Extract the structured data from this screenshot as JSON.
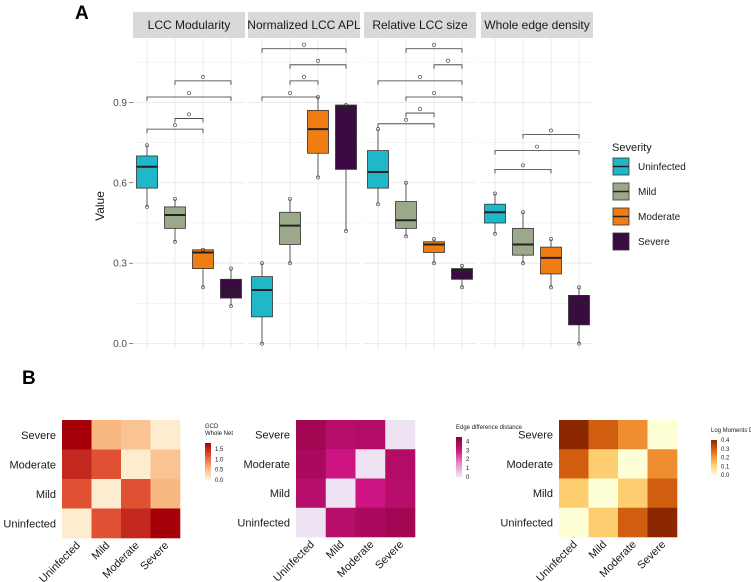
{
  "panel_labels": [
    "A",
    "B"
  ],
  "colors": {
    "Uninfected": "#20B8C8",
    "Mild": "#9BA88A",
    "Moderate": "#F07D14",
    "Severe": "#3B0A43",
    "panel_bg": "#ffffff",
    "grid": "#e6e6e6",
    "strip": "#d9d9d9"
  },
  "chart_data": [
    {
      "type": "box",
      "ylabel": "Value",
      "ylim": [
        -0.02,
        1.0
      ],
      "yticks": [
        0.0,
        0.3,
        0.6,
        0.9
      ],
      "ytick_labels": [
        "0.0",
        "0.3",
        "0.6",
        "0.9"
      ],
      "legend": {
        "title": "Severity",
        "position": "right",
        "entries": [
          "Uninfected",
          "Mild",
          "Moderate",
          "Severe"
        ]
      },
      "facets": [
        {
          "title": "LCC Modularity",
          "boxes": [
            {
              "group": "Uninfected",
              "min": 0.51,
              "q1": 0.58,
              "median": 0.66,
              "q3": 0.7,
              "max": 0.74,
              "points": [
                0.51,
                0.74
              ]
            },
            {
              "group": "Mild",
              "min": 0.38,
              "q1": 0.43,
              "median": 0.48,
              "q3": 0.51,
              "max": 0.54,
              "points": [
                0.38,
                0.54
              ]
            },
            {
              "group": "Moderate",
              "min": 0.21,
              "q1": 0.28,
              "median": 0.34,
              "q3": 0.35,
              "max": 0.35,
              "points": [
                0.21,
                0.35
              ]
            },
            {
              "group": "Severe",
              "min": 0.14,
              "q1": 0.17,
              "median": 0.2,
              "q3": 0.24,
              "max": 0.28,
              "points": [
                0.14,
                0.28
              ]
            }
          ],
          "brackets": [
            {
              "from": "Uninfected",
              "to": "Moderate",
              "y": 0.8,
              "label": "o"
            },
            {
              "from": "Mild",
              "to": "Moderate",
              "y": 0.84,
              "label": "o"
            },
            {
              "from": "Uninfected",
              "to": "Severe",
              "y": 0.92,
              "label": "o"
            },
            {
              "from": "Mild",
              "to": "Severe",
              "y": 0.98,
              "label": "o"
            }
          ]
        },
        {
          "title": "Normalized LCC APL",
          "boxes": [
            {
              "group": "Uninfected",
              "min": 0.0,
              "q1": 0.1,
              "median": 0.2,
              "q3": 0.25,
              "max": 0.3,
              "points": [
                0.0,
                0.3
              ]
            },
            {
              "group": "Mild",
              "min": 0.3,
              "q1": 0.37,
              "median": 0.44,
              "q3": 0.49,
              "max": 0.54,
              "points": [
                0.3,
                0.54
              ]
            },
            {
              "group": "Moderate",
              "min": 0.62,
              "q1": 0.71,
              "median": 0.8,
              "q3": 0.87,
              "max": 0.92,
              "points": [
                0.62,
                0.92
              ]
            },
            {
              "group": "Severe",
              "min": 0.42,
              "q1": 0.65,
              "median": 0.88,
              "q3": 0.89,
              "max": 0.89,
              "points": [
                0.42,
                0.89
              ]
            }
          ],
          "brackets": [
            {
              "from": "Uninfected",
              "to": "Moderate",
              "y": 0.92,
              "label": "o"
            },
            {
              "from": "Mild",
              "to": "Moderate",
              "y": 0.98,
              "label": "o"
            },
            {
              "from": "Mild",
              "to": "Severe",
              "y": 1.04,
              "label": "o"
            },
            {
              "from": "Uninfected",
              "to": "Severe",
              "y": 1.1,
              "label": "o"
            }
          ]
        },
        {
          "title": "Relative LCC size",
          "boxes": [
            {
              "group": "Uninfected",
              "min": 0.52,
              "q1": 0.58,
              "median": 0.64,
              "q3": 0.72,
              "max": 0.8,
              "points": [
                0.52,
                0.8
              ]
            },
            {
              "group": "Mild",
              "min": 0.4,
              "q1": 0.43,
              "median": 0.46,
              "q3": 0.53,
              "max": 0.6,
              "points": [
                0.4,
                0.6
              ]
            },
            {
              "group": "Moderate",
              "min": 0.3,
              "q1": 0.34,
              "median": 0.37,
              "q3": 0.38,
              "max": 0.39,
              "points": [
                0.3,
                0.39
              ]
            },
            {
              "group": "Severe",
              "min": 0.21,
              "q1": 0.24,
              "median": 0.27,
              "q3": 0.28,
              "max": 0.29,
              "points": [
                0.21,
                0.29
              ]
            }
          ],
          "brackets": [
            {
              "from": "Uninfected",
              "to": "Moderate",
              "y": 0.82,
              "label": "o"
            },
            {
              "from": "Mild",
              "to": "Moderate",
              "y": 0.86,
              "label": "o"
            },
            {
              "from": "Mild",
              "to": "Severe",
              "y": 0.92,
              "label": "o"
            },
            {
              "from": "Uninfected",
              "to": "Severe",
              "y": 0.98,
              "label": "o"
            },
            {
              "from": "Moderate",
              "to": "Severe",
              "y": 1.04,
              "label": "o"
            },
            {
              "from": "Mild",
              "to": "Severe",
              "y": 1.1,
              "label": "o"
            }
          ]
        },
        {
          "title": "Whole edge density",
          "boxes": [
            {
              "group": "Uninfected",
              "min": 0.41,
              "q1": 0.45,
              "median": 0.49,
              "q3": 0.52,
              "max": 0.56,
              "points": [
                0.41,
                0.56
              ]
            },
            {
              "group": "Mild",
              "min": 0.3,
              "q1": 0.33,
              "median": 0.37,
              "q3": 0.43,
              "max": 0.49,
              "points": [
                0.3,
                0.49
              ]
            },
            {
              "group": "Moderate",
              "min": 0.21,
              "q1": 0.26,
              "median": 0.32,
              "q3": 0.36,
              "max": 0.39,
              "points": [
                0.21,
                0.39
              ]
            },
            {
              "group": "Severe",
              "min": 0.0,
              "q1": 0.07,
              "median": 0.15,
              "q3": 0.18,
              "max": 0.21,
              "points": [
                0.0,
                0.21
              ]
            }
          ],
          "brackets": [
            {
              "from": "Uninfected",
              "to": "Moderate",
              "y": 0.65,
              "label": "o"
            },
            {
              "from": "Uninfected",
              "to": "Severe",
              "y": 0.72,
              "label": "o"
            },
            {
              "from": "Mild",
              "to": "Severe",
              "y": 0.78,
              "label": "o"
            }
          ]
        }
      ]
    },
    {
      "type": "heatmap",
      "rows": [
        "Severe",
        "Moderate",
        "Mild",
        "Uninfected"
      ],
      "cols": [
        "Uninfected",
        "Mild",
        "Moderate",
        "Severe"
      ],
      "values": [
        [
          1.8,
          0.55,
          0.45,
          0.1
        ],
        [
          1.5,
          1.2,
          0.1,
          0.45
        ],
        [
          1.2,
          0.1,
          1.2,
          0.55
        ],
        [
          0.1,
          1.2,
          1.5,
          1.8
        ]
      ],
      "range": [
        0,
        1.8
      ],
      "colorbar": {
        "title": [
          "GCD",
          "Whole Net"
        ],
        "ticks": [
          0.0,
          0.5,
          1.0,
          1.5
        ],
        "tick_labels": [
          "0.0",
          "0.5",
          "1.0",
          "1.5"
        ]
      },
      "scale": "red"
    },
    {
      "type": "heatmap",
      "rows": [
        "Severe",
        "Moderate",
        "Mild",
        "Uninfected"
      ],
      "cols": [
        "Uninfected",
        "Mild",
        "Moderate",
        "Severe"
      ],
      "values": [
        [
          4.0,
          3.5,
          3.6,
          0.1
        ],
        [
          3.8,
          3.0,
          0.1,
          3.6
        ],
        [
          3.5,
          0.1,
          3.0,
          3.5
        ],
        [
          0.1,
          3.5,
          3.8,
          4.0
        ]
      ],
      "range": [
        0,
        4.5
      ],
      "colorbar": {
        "title": [
          "Edge difference distance"
        ],
        "ticks": [
          0,
          1,
          2,
          3,
          4
        ],
        "tick_labels": [
          "0",
          "1",
          "2",
          "3",
          "4"
        ]
      },
      "scale": "pink"
    },
    {
      "type": "heatmap",
      "rows": [
        "Severe",
        "Moderate",
        "Mild",
        "Uninfected"
      ],
      "cols": [
        "Uninfected",
        "Mild",
        "Moderate",
        "Severe"
      ],
      "values": [
        [
          0.4,
          0.3,
          0.22,
          0.0
        ],
        [
          0.3,
          0.12,
          0.0,
          0.22
        ],
        [
          0.12,
          0.0,
          0.12,
          0.3
        ],
        [
          0.0,
          0.12,
          0.3,
          0.4
        ]
      ],
      "range": [
        0,
        0.4
      ],
      "colorbar": {
        "title": [
          "Log Moments Distance"
        ],
        "ticks": [
          0.0,
          0.1,
          0.2,
          0.3,
          0.4
        ],
        "tick_labels": [
          "0.0",
          "0.1",
          "0.2",
          "0.3",
          "0.4"
        ]
      },
      "scale": "orange"
    }
  ]
}
